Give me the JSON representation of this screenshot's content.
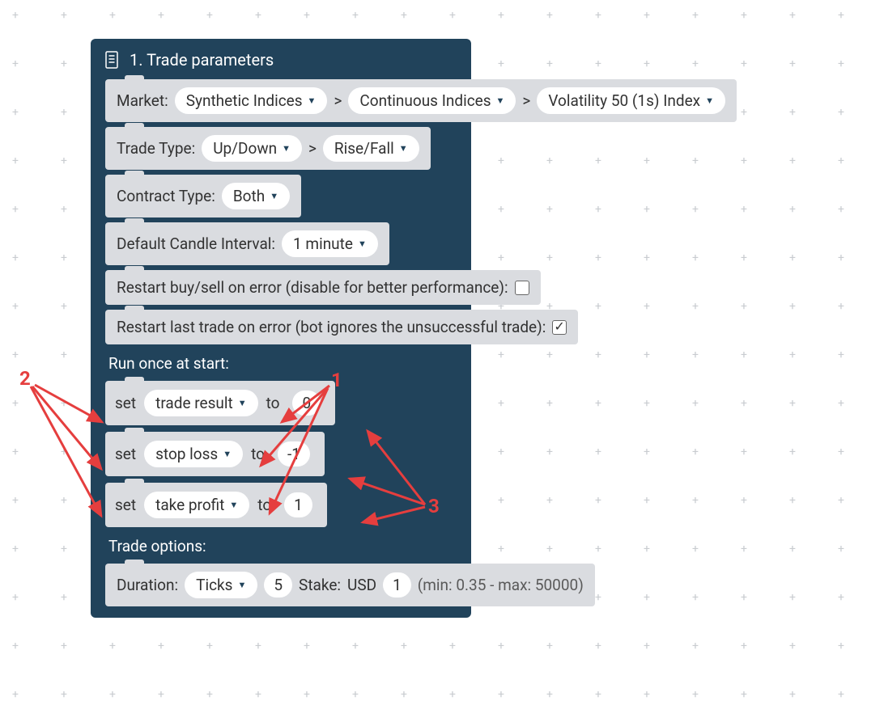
{
  "colors": {
    "block_bg": "#21435b",
    "row_bg": "#dadce0",
    "pill_bg": "#ffffff",
    "text_dark": "#323232",
    "text_light": "#ffffff",
    "annotation": "#e53e3e",
    "plus_grid": "#c9ccd0"
  },
  "header": {
    "title": "1. Trade parameters"
  },
  "market": {
    "label": "Market:",
    "level1": "Synthetic Indices",
    "level2": "Continuous Indices",
    "level3": "Volatility 50 (1s) Index"
  },
  "trade_type": {
    "label": "Trade Type:",
    "level1": "Up/Down",
    "level2": "Rise/Fall"
  },
  "contract_type": {
    "label": "Contract Type:",
    "value": "Both"
  },
  "candle_interval": {
    "label": "Default Candle Interval:",
    "value": "1 minute"
  },
  "restart_buy_sell": {
    "label": "Restart buy/sell on error (disable for better performance):",
    "checked": false
  },
  "restart_last_trade": {
    "label": "Restart last trade on error (bot ignores the unsuccessful trade):",
    "checked": true
  },
  "run_once": {
    "label": "Run once at start:",
    "rows": [
      {
        "set": "set",
        "var": "trade result",
        "to": "to",
        "value": "0"
      },
      {
        "set": "set",
        "var": "stop loss",
        "to": "to",
        "value": "-1"
      },
      {
        "set": "set",
        "var": "take profit",
        "to": "to",
        "value": "1"
      }
    ]
  },
  "trade_options": {
    "label": "Trade options:",
    "duration_label": "Duration:",
    "duration_unit": "Ticks",
    "duration_value": "5",
    "stake_label": "Stake:",
    "currency": "USD",
    "stake_value": "1",
    "hint": "(min: 0.35 - max: 50000)"
  },
  "annotations": {
    "1": "1",
    "2": "2",
    "3": "3"
  }
}
